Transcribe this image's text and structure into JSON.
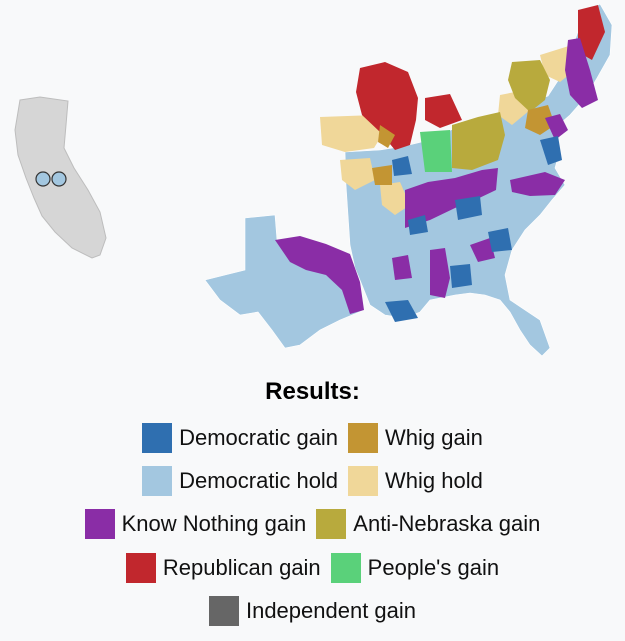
{
  "colors": {
    "democratic_gain": "#2f6fb0",
    "democratic_hold": "#a3c7e0",
    "whig_gain": "#c39533",
    "whig_hold": "#f0d799",
    "know_nothing_gain": "#8a2da6",
    "anti_nebraska_gain": "#b8aa3d",
    "republican_gain": "#c1272d",
    "peoples_gain": "#5ad17a",
    "independent_gain": "#666666",
    "california": "#d6d6d6"
  },
  "legend": {
    "title": "Results:",
    "rows": [
      [
        {
          "label": "Democratic gain",
          "color": "#2f6fb0"
        },
        {
          "label": "Whig gain",
          "color": "#c39533"
        }
      ],
      [
        {
          "label": "Democratic hold",
          "color": "#a3c7e0"
        },
        {
          "label": "Whig hold",
          "color": "#f0d799"
        }
      ],
      [
        {
          "label": "Know Nothing gain",
          "color": "#8a2da6"
        },
        {
          "label": "Anti-Nebraska gain",
          "color": "#b8aa3d"
        }
      ],
      [
        {
          "label": "Republican gain",
          "color": "#c1272d"
        },
        {
          "label": "People's gain",
          "color": "#5ad17a"
        }
      ],
      [
        {
          "label": "Independent gain",
          "color": "#666666"
        }
      ]
    ]
  }
}
